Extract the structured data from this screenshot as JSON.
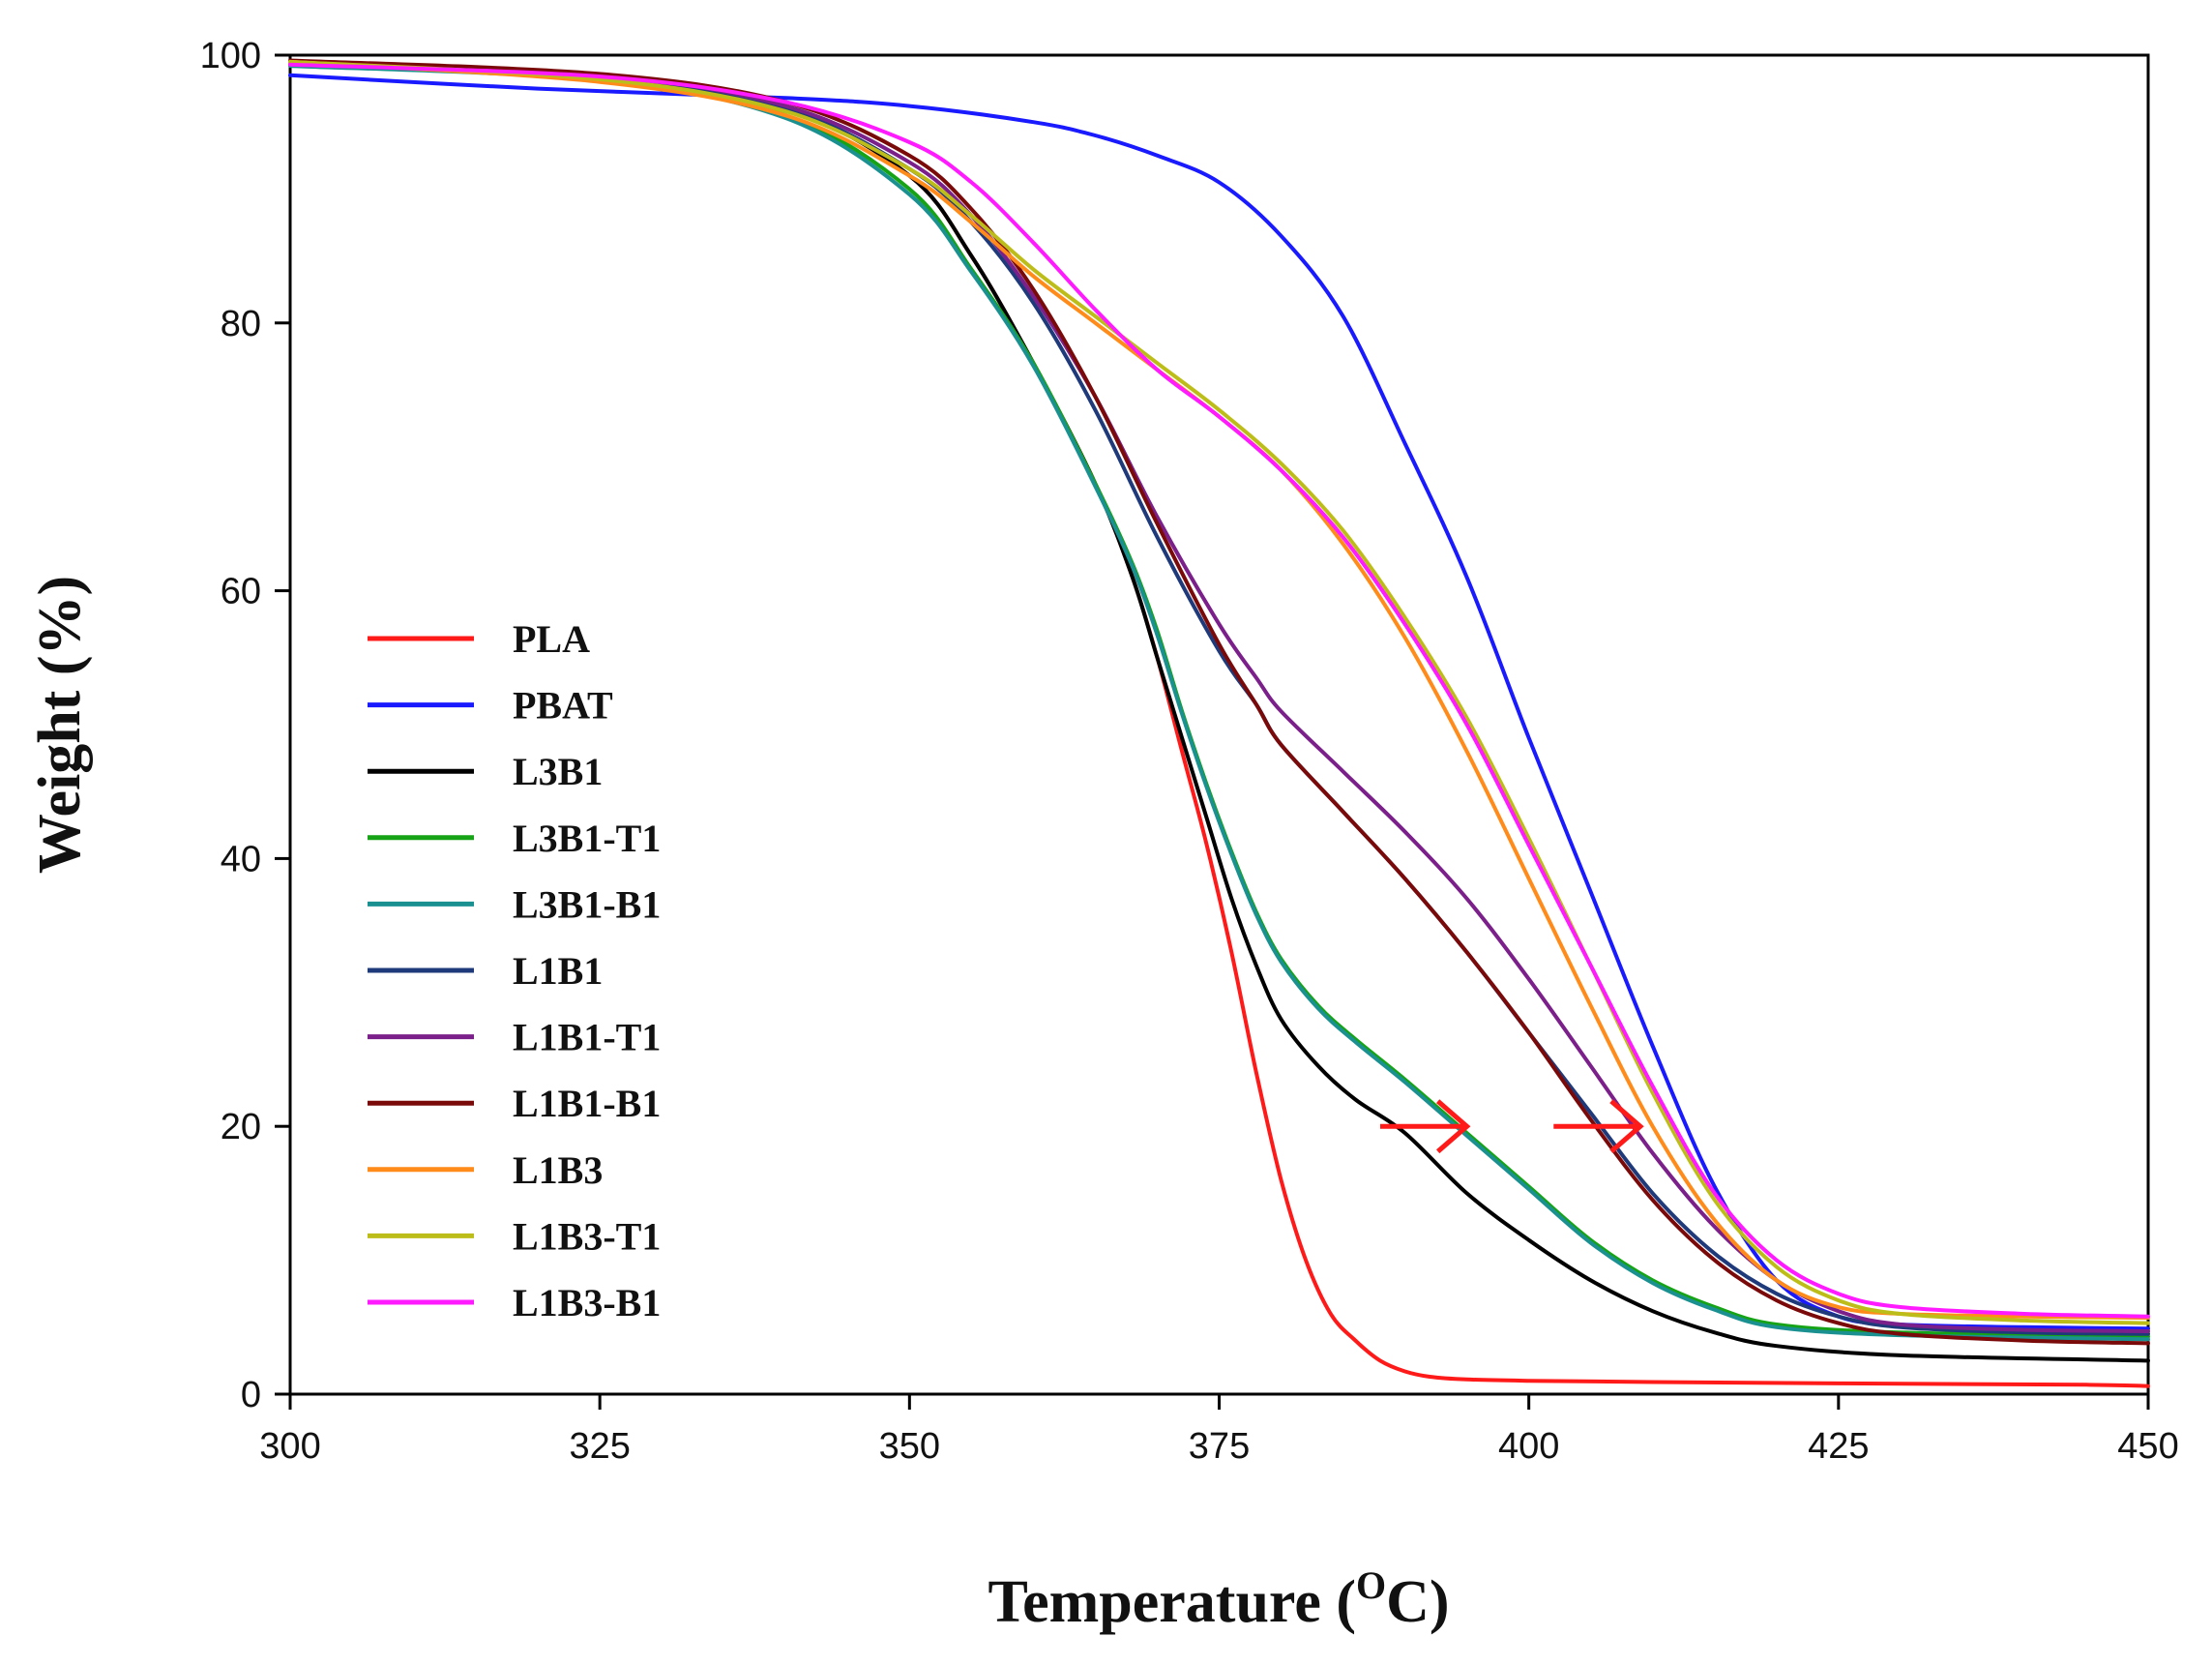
{
  "chart_data": {
    "type": "line",
    "title": "",
    "xlabel": "Temperature (",
    "xlabel_unit_sup": "O",
    "xlabel_unit": "C)",
    "ylabel": "Weight (%)",
    "xlim": [
      300,
      450
    ],
    "ylim": [
      0,
      100
    ],
    "xticks": [
      300,
      325,
      350,
      375,
      400,
      425,
      450
    ],
    "yticks": [
      0,
      20,
      40,
      60,
      80,
      100
    ],
    "grid": false,
    "legend_position": "left-center",
    "series": [
      {
        "name": "PLA",
        "color": "#ff1a1a",
        "x": [
          300,
          325,
          340,
          350,
          355,
          360,
          365,
          368,
          370,
          372,
          374,
          376,
          378,
          380,
          382,
          384,
          386,
          388,
          390,
          392,
          395,
          400,
          410,
          425,
          445,
          450
        ],
        "y": [
          99.5,
          98.5,
          96,
          91,
          85,
          77,
          68,
          61,
          55,
          48,
          41,
          33,
          24,
          16,
          10,
          6,
          4,
          2.5,
          1.7,
          1.3,
          1.1,
          1.0,
          0.9,
          0.8,
          0.7,
          0.6
        ]
      },
      {
        "name": "PBAT",
        "color": "#1a1aff",
        "x": [
          300,
          320,
          340,
          350,
          360,
          365,
          370,
          375,
          380,
          385,
          390,
          395,
          400,
          405,
          410,
          415,
          420,
          425,
          430,
          440,
          450
        ],
        "y": [
          98.5,
          97.5,
          96.8,
          96.2,
          95,
          94,
          92.5,
          90.5,
          86.5,
          80.5,
          71,
          61,
          49,
          37.5,
          26,
          15.5,
          8.5,
          5.8,
          5.2,
          5.0,
          4.9
        ]
      },
      {
        "name": "L3B1",
        "color": "#000000",
        "x": [
          300,
          325,
          340,
          350,
          355,
          360,
          365,
          368,
          370,
          372,
          374,
          376,
          378,
          380,
          383,
          386,
          390,
          395,
          400,
          405,
          410,
          415,
          420,
          430,
          450
        ],
        "y": [
          99.5,
          98.5,
          96,
          91,
          85,
          77,
          68,
          61,
          55,
          49,
          43,
          37,
          32,
          28,
          24.5,
          22,
          19.5,
          15,
          11.5,
          8.5,
          6.2,
          4.6,
          3.6,
          2.9,
          2.5
        ]
      },
      {
        "name": "L3B1-T1",
        "color": "#16a316",
        "x": [
          300,
          325,
          340,
          350,
          355,
          360,
          365,
          368,
          370,
          372,
          374,
          376,
          378,
          380,
          383,
          386,
          390,
          395,
          400,
          405,
          410,
          415,
          420,
          430,
          450
        ],
        "y": [
          99.3,
          98.2,
          95.5,
          90,
          84,
          77,
          68,
          62,
          57,
          51,
          45.5,
          40.5,
          36,
          32.5,
          29,
          26.5,
          23.5,
          19.5,
          15.5,
          11.5,
          8.5,
          6.5,
          5.2,
          4.6,
          4.3
        ]
      },
      {
        "name": "L3B1-B1",
        "color": "#1a9090",
        "x": [
          300,
          325,
          340,
          350,
          355,
          360,
          365,
          368,
          370,
          372,
          374,
          376,
          378,
          380,
          383,
          386,
          390,
          395,
          400,
          405,
          410,
          415,
          420,
          430,
          450
        ],
        "y": [
          99.2,
          98.1,
          95.3,
          89.6,
          83.8,
          76.8,
          67.8,
          61.8,
          56.7,
          50.8,
          45.3,
          40.3,
          35.8,
          32.3,
          28.8,
          26.3,
          23.3,
          19.3,
          15.3,
          11.3,
          8.3,
          6.3,
          5.0,
          4.4,
          4.1
        ]
      },
      {
        "name": "L1B1",
        "color": "#1f3a7a",
        "x": [
          300,
          325,
          340,
          350,
          355,
          360,
          365,
          370,
          375,
          378,
          380,
          385,
          390,
          395,
          400,
          405,
          410,
          415,
          420,
          425,
          430,
          440,
          450
        ],
        "y": [
          99.5,
          98.4,
          96,
          91.5,
          87.5,
          81.5,
          73.5,
          64,
          55.5,
          51.5,
          48.5,
          43.5,
          38.5,
          33,
          27,
          21,
          15,
          10.5,
          7.5,
          5.8,
          5.0,
          4.6,
          4.5
        ]
      },
      {
        "name": "L1B1-T1",
        "color": "#7b1f8a",
        "x": [
          300,
          325,
          340,
          350,
          355,
          360,
          365,
          370,
          375,
          378,
          380,
          385,
          390,
          395,
          400,
          405,
          410,
          415,
          420,
          425,
          430,
          440,
          450
        ],
        "y": [
          99.5,
          98.5,
          96.2,
          92,
          88,
          82,
          74.5,
          65.5,
          57.5,
          53.5,
          51,
          46.5,
          42,
          37,
          31,
          24.5,
          18,
          12.5,
          8.5,
          6.2,
          5.2,
          4.8,
          4.7
        ]
      },
      {
        "name": "L1B1-B1",
        "color": "#7a0a0a",
        "x": [
          300,
          325,
          340,
          350,
          355,
          360,
          365,
          370,
          375,
          378,
          380,
          385,
          390,
          395,
          400,
          405,
          410,
          415,
          420,
          425,
          430,
          440,
          450
        ],
        "y": [
          99.6,
          98.6,
          96.5,
          92.5,
          88.5,
          82.5,
          74.5,
          65,
          56,
          51.5,
          48.5,
          43.5,
          38.5,
          33,
          27,
          20.5,
          14.5,
          10,
          7,
          5.3,
          4.5,
          4.0,
          3.8
        ]
      },
      {
        "name": "L1B3",
        "color": "#ff8c1a",
        "x": [
          300,
          325,
          340,
          350,
          355,
          360,
          365,
          370,
          375,
          380,
          385,
          390,
          395,
          400,
          405,
          410,
          415,
          420,
          425,
          430,
          440,
          450
        ],
        "y": [
          99.5,
          98,
          95.5,
          91,
          87.5,
          83.5,
          80,
          76.5,
          73,
          69,
          63.5,
          56.5,
          48,
          38.5,
          29,
          20,
          13,
          8.5,
          6.5,
          6.0,
          5.8,
          5.7
        ]
      },
      {
        "name": "L1B3-T1",
        "color": "#bdbd1a",
        "x": [
          300,
          325,
          340,
          350,
          355,
          360,
          365,
          370,
          375,
          380,
          385,
          390,
          395,
          400,
          405,
          410,
          415,
          420,
          425,
          430,
          440,
          450
        ],
        "y": [
          99.5,
          98.2,
          95.8,
          91.5,
          88,
          84,
          80.5,
          77,
          73.5,
          69.5,
          64.5,
          58,
          50.5,
          41.5,
          32,
          22.5,
          14.5,
          9.5,
          7,
          6.0,
          5.5,
          5.3
        ]
      },
      {
        "name": "L1B3-B1",
        "color": "#ff1aff",
        "x": [
          300,
          325,
          340,
          350,
          355,
          360,
          365,
          370,
          375,
          380,
          385,
          390,
          395,
          400,
          405,
          410,
          415,
          420,
          425,
          430,
          440,
          450
        ],
        "y": [
          99.3,
          98.4,
          96.5,
          93.5,
          90.5,
          86,
          81,
          76.5,
          73,
          69,
          64,
          57.5,
          50,
          41,
          32,
          23,
          15,
          10,
          7.5,
          6.5,
          6.0,
          5.8
        ]
      }
    ],
    "annotations": [
      {
        "type": "arrow",
        "color": "#ff1a1a",
        "from": [
          388,
          20
        ],
        "to": [
          395,
          20
        ]
      },
      {
        "type": "arrow",
        "color": "#ff1a1a",
        "from": [
          402,
          20
        ],
        "to": [
          409,
          20
        ]
      }
    ]
  }
}
